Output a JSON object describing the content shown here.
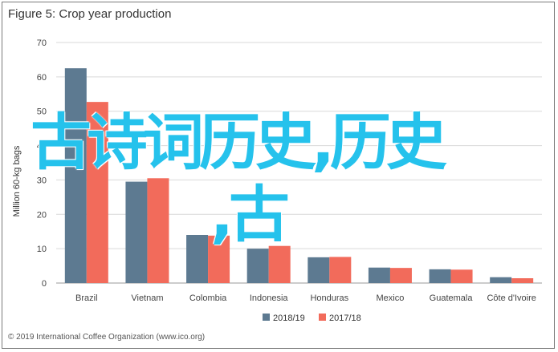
{
  "figure": {
    "title": "Figure 5: Crop year production",
    "footer": "© 2019 International Coffee Organization (www.ico.org)"
  },
  "overlay": {
    "line1": "古诗词历史,历史",
    "line2": ",古",
    "color": "#25c2ec"
  },
  "chart_data": {
    "type": "bar",
    "title": "Figure 5: Crop year production",
    "xlabel": "",
    "ylabel": "Million 60-kg bags",
    "ylim": [
      0,
      70
    ],
    "yticks": [
      0,
      10,
      20,
      30,
      40,
      50,
      60,
      70
    ],
    "grid": true,
    "legend_position": "bottom-center",
    "categories": [
      "Brazil",
      "Vietnam",
      "Colombia",
      "Indonesia",
      "Honduras",
      "Mexico",
      "Guatemala",
      "Côte d'Ivoire"
    ],
    "series": [
      {
        "name": "2018/19",
        "color": "#5d7a91",
        "values": [
          62.5,
          29.5,
          14.0,
          10.0,
          7.5,
          4.5,
          4.0,
          1.7
        ]
      },
      {
        "name": "2017/18",
        "color": "#f26b5b",
        "values": [
          52.7,
          30.5,
          13.8,
          10.8,
          7.6,
          4.4,
          3.9,
          1.4
        ]
      }
    ]
  }
}
